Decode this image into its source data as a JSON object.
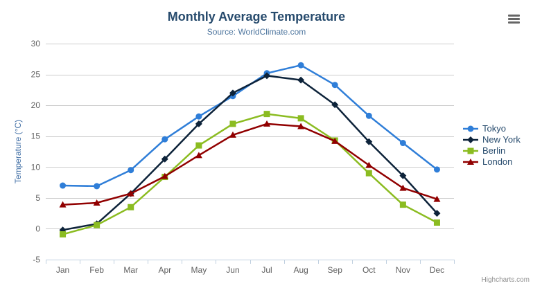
{
  "credits": "Highcharts.com",
  "menu": {
    "icon": "hamburger-icon"
  },
  "chart_data": {
    "type": "line",
    "title": "Monthly Average Temperature",
    "subtitle": "Source: WorldClimate.com",
    "xlabel": "",
    "ylabel": "Temperature (°C)",
    "ylim": [
      -5,
      30
    ],
    "y_ticks": [
      -5,
      0,
      5,
      10,
      15,
      20,
      25,
      30
    ],
    "grid": true,
    "legend_position": "right",
    "categories": [
      "Jan",
      "Feb",
      "Mar",
      "Apr",
      "May",
      "Jun",
      "Jul",
      "Aug",
      "Sep",
      "Oct",
      "Nov",
      "Dec"
    ],
    "series": [
      {
        "name": "Tokyo",
        "color": "#2f7ed8",
        "marker": "circle",
        "values": [
          7.0,
          6.9,
          9.5,
          14.5,
          18.2,
          21.5,
          25.2,
          26.5,
          23.3,
          18.3,
          13.9,
          9.6
        ]
      },
      {
        "name": "New York",
        "color": "#0d233a",
        "marker": "diamond",
        "values": [
          -0.2,
          0.8,
          5.7,
          11.3,
          17.0,
          22.0,
          24.8,
          24.1,
          20.1,
          14.1,
          8.6,
          2.5
        ]
      },
      {
        "name": "Berlin",
        "color": "#8bbc21",
        "marker": "square",
        "values": [
          -0.9,
          0.6,
          3.5,
          8.4,
          13.5,
          17.0,
          18.6,
          17.9,
          14.3,
          9.0,
          3.9,
          1.0
        ]
      },
      {
        "name": "London",
        "color": "#910000",
        "marker": "triangle",
        "values": [
          3.9,
          4.2,
          5.7,
          8.5,
          11.9,
          15.2,
          17.0,
          16.6,
          14.2,
          10.3,
          6.6,
          4.8
        ]
      }
    ],
    "style": {
      "title_color": "#274b6d",
      "subtitle_color": "#4d759e",
      "axis_label_color": "#606060",
      "axis_title_color": "#4572a7",
      "grid_color": "#cccccc",
      "axis_line_color": "#c0d0e0",
      "legend_text_color": "#274b6d",
      "credits_color": "#909090",
      "line_width": 2.5
    }
  }
}
